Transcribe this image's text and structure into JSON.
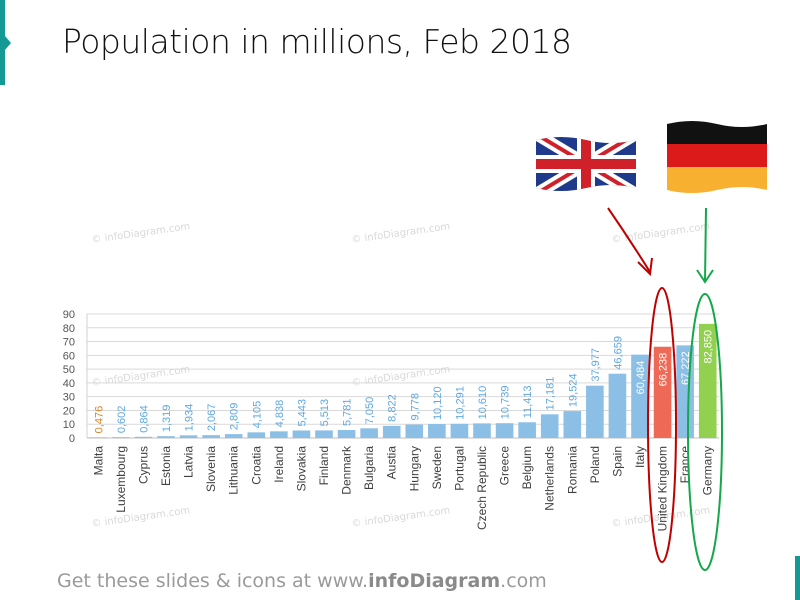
{
  "title": "Population in millions, Feb 2018",
  "footer": {
    "prefix": "Get these slides & icons at www.",
    "brand": "infoDiagram",
    "suffix": ".com"
  },
  "watermark": "© infoDiagram.com",
  "colors": {
    "accent": "#139a94",
    "bar": "#8bbfe6",
    "highlight_uk": "#ee6a57",
    "highlight_de": "#92d050",
    "label": "#5fa8e0",
    "malta_label": "#d9822b",
    "uk_circle": "#c00000",
    "de_circle": "#14a84a"
  },
  "icons": {
    "uk": "uk-flag-icon",
    "de": "germany-flag-icon"
  },
  "chart_data": {
    "type": "bar",
    "title": "Population in millions, Feb 2018",
    "ylim": [
      0,
      90
    ],
    "yticks": [
      0,
      10,
      20,
      30,
      40,
      50,
      60,
      70,
      80,
      90
    ],
    "grid": true,
    "categories": [
      "Malta",
      "Luxembourg",
      "Cyprus",
      "Estonia",
      "Latvia",
      "Slovenia",
      "Lithuania",
      "Croatia",
      "Ireland",
      "Slovakia",
      "Finland",
      "Denmark",
      "Bulgaria",
      "Austia",
      "Hungary",
      "Sweden",
      "Portugal",
      "Czech Republic",
      "Greece",
      "Belgium",
      "Netherlands",
      "Romania",
      "Poland",
      "Spain",
      "Italy",
      "United Kingdom",
      "France",
      "Germany"
    ],
    "values": [
      0.476,
      0.602,
      0.864,
      1.319,
      1.934,
      2.067,
      2.809,
      4.105,
      4.838,
      5.443,
      5.513,
      5.781,
      7.05,
      8.822,
      9.778,
      10.12,
      10.291,
      10.61,
      10.739,
      11.413,
      17.181,
      19.524,
      37.977,
      46.659,
      60.484,
      66.238,
      67.222,
      82.85
    ],
    "labels": [
      "0,476",
      "0,602",
      "0,864",
      "1,319",
      "1,934",
      "2,067",
      "2,809",
      "4,105",
      "4,838",
      "5,443",
      "5,513",
      "5,781",
      "7,050",
      "8,822",
      "9,778",
      "10,120",
      "10,291",
      "10,610",
      "10,739",
      "11,413",
      "17,181",
      "19,524",
      "37,977",
      "46,659",
      "60,484",
      "66,238",
      "67,222",
      "82,850"
    ],
    "highlighted": {
      "United Kingdom": "#ee6a57",
      "Germany": "#92d050"
    }
  }
}
